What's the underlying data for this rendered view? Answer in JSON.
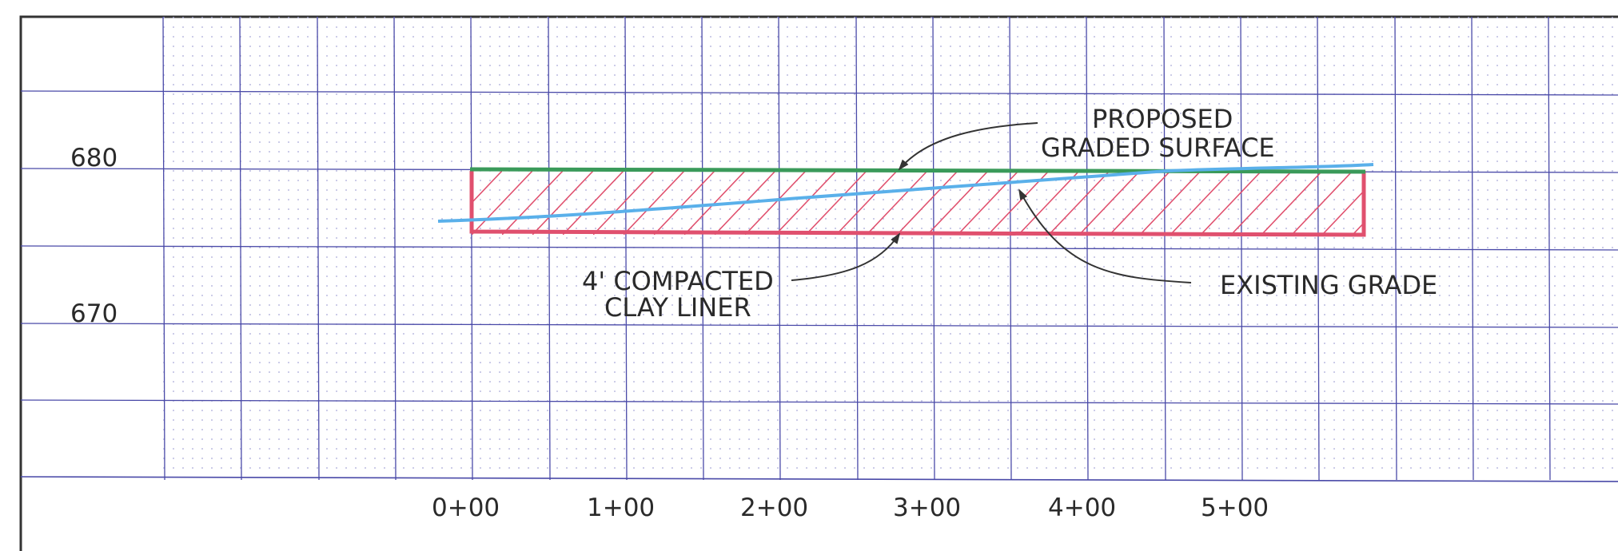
{
  "drawing": {
    "elevation_labels": [
      "680",
      "670"
    ],
    "station_labels": [
      "0+00",
      "1+00",
      "2+00",
      "3+00",
      "4+00",
      "5+00"
    ],
    "annotations": {
      "proposed": {
        "line1": "PROPOSED",
        "line2": "GRADED SURFACE"
      },
      "existing": {
        "line1": "EXISTING GRADE"
      },
      "liner": {
        "line1": "4' COMPACTED",
        "line2": "CLAY LINER"
      }
    },
    "colors": {
      "grid": "#4a4aa8",
      "grid_minor": "#9a9ad0",
      "proposed_surface": "#3a9a5a",
      "clay_liner": "#e0506e",
      "existing_grade": "#5ab0ea",
      "leader": "#333333",
      "border": "#333333"
    }
  }
}
